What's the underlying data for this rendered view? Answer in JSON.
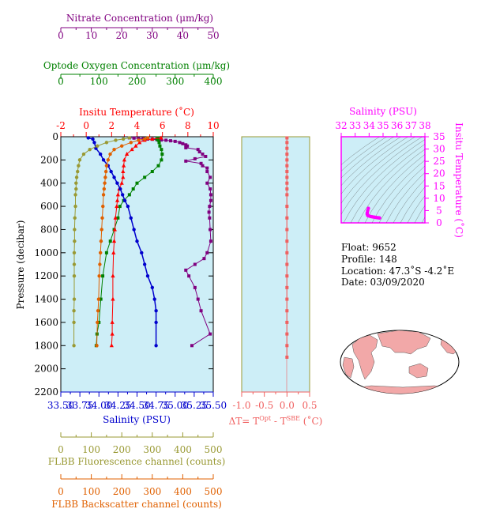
{
  "colors": {
    "nitrate": "#800080",
    "oxygen": "#008000",
    "temperature": "#ff0000",
    "salinity": "#0000cd",
    "fluorescence": "#999933",
    "backscatter": "#e06000",
    "delta": "#f06060",
    "ts": "#ff00ff",
    "plot_bg": "#cdeef7",
    "delta_frame": "#999933"
  },
  "axes": {
    "nitrate": {
      "label": "Nitrate Concentration (μm/kg)",
      "ticks": [
        "0",
        "10",
        "20",
        "30",
        "40",
        "50"
      ],
      "range": [
        0,
        50
      ]
    },
    "oxygen": {
      "label": "Optode Oxygen Concentration (μm/kg)",
      "ticks": [
        "0",
        "100",
        "200",
        "300",
        "400"
      ],
      "range": [
        0,
        400
      ]
    },
    "temperature": {
      "label": "Insitu Temperature (˚C)",
      "ticks": [
        "-2",
        "0",
        "2",
        "4",
        "6",
        "8",
        "10"
      ],
      "range": [
        -2,
        10
      ]
    },
    "pressure": {
      "label": "Pressure (decibar)",
      "ticks": [
        "0",
        "200",
        "400",
        "600",
        "800",
        "1000",
        "1200",
        "1400",
        "1600",
        "1800",
        "2000",
        "2200"
      ],
      "range": [
        0,
        2200
      ]
    },
    "salinity": {
      "label": "Salinity (PSU)",
      "ticks": [
        "33.50",
        "33.75",
        "34.00",
        "34.25",
        "34.50",
        "34.75",
        "35.00",
        "35.25",
        "35.50"
      ],
      "range": [
        33.5,
        35.5
      ]
    },
    "fluorescence": {
      "label": "FLBB Fluorescence channel (counts)",
      "ticks": [
        "0",
        "100",
        "200",
        "300",
        "400",
        "500"
      ],
      "range": [
        0,
        500
      ]
    },
    "backscatter": {
      "label": "FLBB Backscatter channel (counts)",
      "ticks": [
        "0",
        "100",
        "200",
        "300",
        "400",
        "500"
      ],
      "range": [
        0,
        500
      ]
    },
    "delta": {
      "label_prefix": "ΔT= T",
      "sup1": "Opt",
      "mid": " - T",
      "sup2": "SBE",
      "suffix": " (˚C)",
      "ticks": [
        "-1.0",
        "-0.5",
        "0.0",
        "0.5"
      ],
      "range": [
        -1.0,
        0.5
      ]
    },
    "ts_salinity": {
      "label": "Salinity (PSU)",
      "ticks": [
        "32",
        "33",
        "34",
        "35",
        "36",
        "37",
        "38"
      ],
      "range": [
        32,
        38
      ]
    },
    "ts_temperature": {
      "label": "Insitu Temperature (˚C)",
      "ticks": [
        "0",
        "5",
        "10",
        "15",
        "20",
        "25",
        "30",
        "35"
      ],
      "range": [
        0,
        35
      ]
    }
  },
  "info": {
    "float": "Float:  9652",
    "profile": "Profile:  148",
    "location": "Location:  47.3˚S  -4.2˚E",
    "date": "Date:  03/09/2020"
  },
  "chart_data": {
    "type": "line",
    "x_label_units": "mixed",
    "series": [
      {
        "name": "Nitrate Concentration",
        "axis": "nitrate",
        "x": [
          22.5,
          24,
          25.5,
          27,
          28.5,
          30,
          31.5,
          33,
          34.5,
          36,
          37.5,
          39,
          40,
          41,
          41.5,
          41,
          45,
          45.5,
          46.5,
          47.5,
          44,
          41,
          46,
          46.5,
          48,
          48,
          49,
          48,
          49,
          49.2,
          49.2,
          48.8,
          48.6,
          48.8,
          49,
          49.2,
          48,
          47,
          44,
          41,
          42,
          44,
          45,
          46,
          49,
          43
        ],
        "y": [
          10,
          12,
          15,
          18,
          20,
          22,
          25,
          28,
          30,
          35,
          40,
          50,
          60,
          70,
          80,
          95,
          110,
          130,
          150,
          170,
          190,
          210,
          230,
          250,
          270,
          300,
          350,
          400,
          450,
          500,
          550,
          600,
          650,
          700,
          800,
          900,
          1000,
          1050,
          1100,
          1150,
          1200,
          1300,
          1400,
          1500,
          1700,
          1800
        ]
      },
      {
        "name": "Optode Oxygen Concentration",
        "axis": "oxygen",
        "x": [
          255,
          252,
          256,
          258,
          260,
          264,
          266,
          264,
          256,
          240,
          220,
          200,
          190,
          180,
          165,
          155,
          150,
          140,
          130,
          120,
          110,
          105,
          100,
          95,
          93
        ],
        "y": [
          10,
          20,
          30,
          50,
          80,
          110,
          150,
          200,
          250,
          300,
          350,
          400,
          450,
          500,
          550,
          600,
          700,
          800,
          900,
          1000,
          1200,
          1400,
          1600,
          1700,
          1800
        ]
      },
      {
        "name": "Insitu Temperature",
        "axis": "temperature",
        "x": [
          5.9,
          5.2,
          4.6,
          4.2,
          3.9,
          3.6,
          3.2,
          3.0,
          2.95,
          2.9,
          2.9,
          2.8,
          2.6,
          2.5,
          2.45,
          2.4,
          2.3,
          2.25,
          2.2,
          2.15,
          2.1,
          2.1,
          2.05,
          2.05,
          2.0
        ],
        "y": [
          10,
          20,
          30,
          50,
          80,
          110,
          150,
          200,
          250,
          300,
          350,
          400,
          450,
          500,
          550,
          600,
          700,
          800,
          900,
          1000,
          1200,
          1400,
          1600,
          1700,
          1800
        ]
      },
      {
        "name": "Salinity",
        "axis": "salinity",
        "x": [
          33.86,
          33.92,
          33.94,
          33.96,
          34.02,
          34.06,
          34.12,
          34.16,
          34.2,
          34.24,
          34.28,
          34.31,
          34.34,
          34.38,
          34.42,
          34.46,
          34.5,
          34.56,
          34.6,
          34.64,
          34.7,
          34.73,
          34.75,
          34.75,
          34.75
        ],
        "y": [
          10,
          20,
          50,
          100,
          150,
          200,
          250,
          300,
          350,
          400,
          450,
          500,
          550,
          600,
          700,
          800,
          900,
          1000,
          1100,
          1200,
          1300,
          1400,
          1500,
          1600,
          1800
        ]
      },
      {
        "name": "FLBB Fluorescence channel",
        "axis": "fluorescence",
        "x": [
          225,
          205,
          180,
          150,
          120,
          95,
          75,
          62,
          58,
          55,
          52,
          50,
          50,
          48,
          48,
          46,
          45,
          45,
          44,
          44,
          44,
          44,
          43,
          43,
          43
        ],
        "y": [
          10,
          20,
          30,
          50,
          80,
          110,
          150,
          200,
          250,
          300,
          350,
          400,
          450,
          500,
          600,
          700,
          800,
          900,
          1000,
          1100,
          1200,
          1400,
          1500,
          1600,
          1800
        ]
      },
      {
        "name": "FLBB Backscatter channel",
        "axis": "backscatter",
        "x": [
          285,
          275,
          255,
          230,
          200,
          175,
          162,
          155,
          150,
          148,
          146,
          144,
          142,
          140,
          138,
          136,
          134,
          132,
          130,
          128,
          126,
          124,
          122,
          120,
          118
        ],
        "y": [
          10,
          20,
          30,
          50,
          80,
          110,
          150,
          200,
          250,
          300,
          350,
          400,
          450,
          500,
          600,
          700,
          800,
          900,
          1000,
          1100,
          1200,
          1400,
          1500,
          1600,
          1800
        ]
      },
      {
        "name": "ΔT",
        "axis": "delta",
        "x": [
          0.0,
          0.0,
          0.0,
          0.0,
          0.0,
          0.0,
          0.0,
          0.0,
          0.0,
          0.0,
          0.0,
          0.0,
          0.0,
          0.0,
          0.0,
          0.0,
          0.0,
          0.0,
          0.0,
          0.0,
          0.0,
          0.0,
          0.0,
          0.0,
          0.0
        ],
        "y": [
          10,
          50,
          100,
          150,
          200,
          250,
          300,
          350,
          400,
          450,
          500,
          600,
          700,
          800,
          900,
          1000,
          1100,
          1200,
          1300,
          1400,
          1500,
          1600,
          1700,
          1800,
          1900
        ]
      },
      {
        "name": "T-S",
        "axis": "ts",
        "x": [
          33.95,
          33.9,
          33.87,
          33.86,
          33.9,
          34.0,
          34.1,
          34.2,
          34.3,
          34.4,
          34.5,
          34.6,
          34.7,
          34.75
        ],
        "y": [
          5.9,
          5.0,
          4.2,
          3.6,
          3.0,
          2.8,
          2.6,
          2.5,
          2.4,
          2.3,
          2.2,
          2.1,
          2.05,
          2.0
        ]
      }
    ]
  }
}
